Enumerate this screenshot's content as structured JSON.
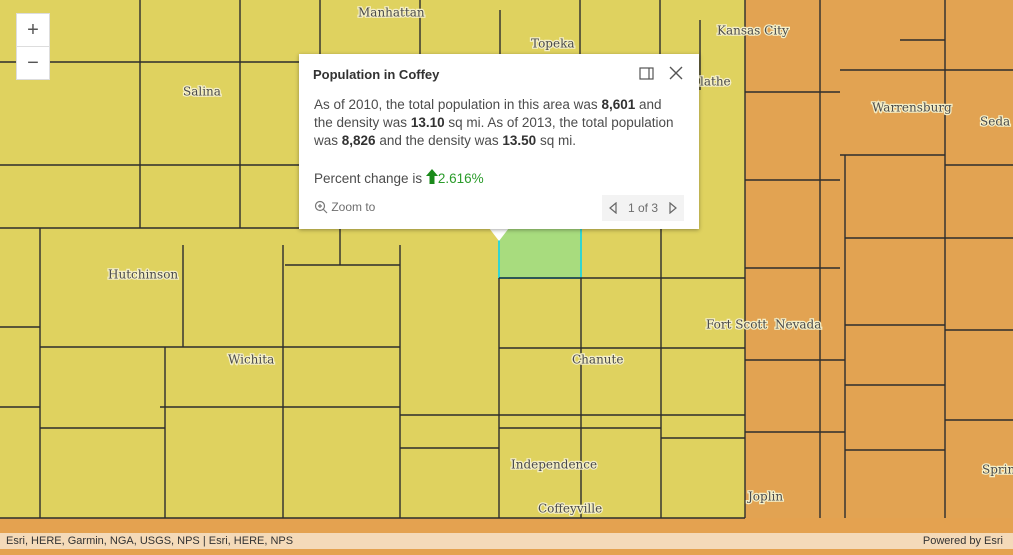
{
  "map": {
    "labels": [
      "Manhattan",
      "Topeka",
      "Kansas City",
      "Salina",
      "lathe",
      "Warrensburg",
      "Seda",
      "Hutchinson",
      "Fort Scott",
      "Nevada",
      "Wichita",
      "Chanute",
      "Independence",
      "Coffeyville",
      "Joplin",
      "Springfie"
    ]
  },
  "zoom": {
    "in": "+",
    "out": "−"
  },
  "popup": {
    "title": "Population in Coffey",
    "paragraph": [
      "As of 2010, the total population in this area was ",
      "8,601",
      " and the density was ",
      "13.10",
      " sq mi. As of 2013, the total population was ",
      "8,826",
      " and the density was ",
      "13.50",
      " sq mi."
    ],
    "change_label": "Percent change is",
    "change_value": "2.616%",
    "zoom_to": "Zoom to",
    "pager": "1 of 3"
  },
  "attribution": {
    "left": "Esri, HERE, Garmin, NGA, USGS, NPS | Esri, HERE, NPS",
    "right": "Powered by Esri"
  }
}
